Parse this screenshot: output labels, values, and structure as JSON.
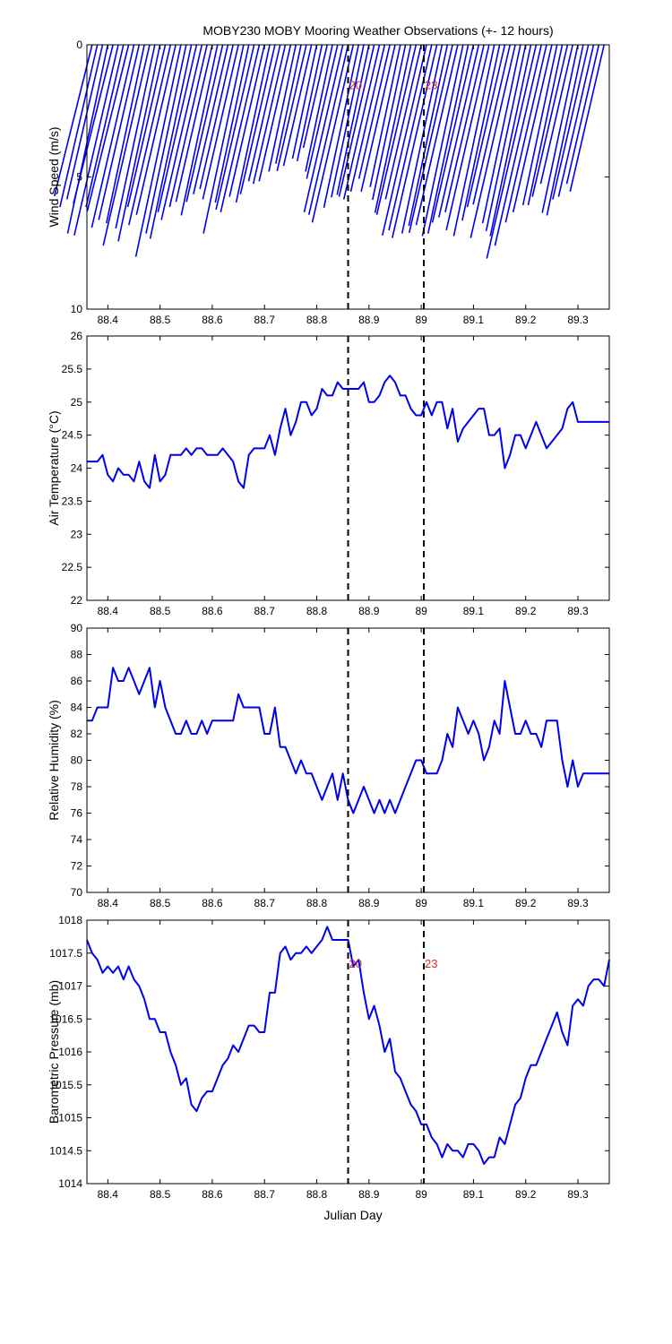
{
  "figure": {
    "title": "MOBY230 MOBY Mooring Weather Observations (+- 12 hours)",
    "xlabel": "Julian Day"
  },
  "colors": {
    "series": "#0000ee",
    "marker": "#d42a2a",
    "axis": "#000000"
  },
  "chart_data": [
    {
      "type": "line",
      "name": "wind",
      "ylabel": "Wind Speed (m/s)",
      "xlim": [
        88.36,
        89.36
      ],
      "ylim": [
        0,
        10
      ],
      "y_reversed": true,
      "xticks": [
        88.4,
        88.5,
        88.6,
        88.7,
        88.8,
        88.9,
        89,
        89.1,
        89.2,
        89.3
      ],
      "yticks": [
        0,
        5,
        10
      ],
      "vlines": [
        88.86,
        89.005
      ],
      "markers": [
        {
          "x": 88.86,
          "label": "20"
        },
        {
          "x": 89.005,
          "label": "23"
        }
      ],
      "marker_y": 1.5,
      "sticks": {
        "x": [
          88.37,
          88.38,
          88.39,
          88.4,
          88.41,
          88.42,
          88.43,
          88.44,
          88.45,
          88.46,
          88.47,
          88.48,
          88.49,
          88.5,
          88.51,
          88.52,
          88.53,
          88.54,
          88.55,
          88.56,
          88.57,
          88.58,
          88.59,
          88.6,
          88.61,
          88.62,
          88.63,
          88.64,
          88.65,
          88.66,
          88.67,
          88.68,
          88.69,
          88.7,
          88.71,
          88.72,
          88.73,
          88.74,
          88.75,
          88.76,
          88.77,
          88.78,
          88.79,
          88.8,
          88.81,
          88.82,
          88.83,
          88.84,
          88.85,
          88.86,
          88.87,
          88.88,
          88.89,
          88.9,
          88.91,
          88.92,
          88.93,
          88.94,
          88.95,
          88.96,
          88.97,
          88.98,
          88.99,
          89.0,
          89.01,
          89.02,
          89.03,
          89.04,
          89.05,
          89.06,
          89.07,
          89.08,
          89.09,
          89.1,
          89.11,
          89.12,
          89.13,
          89.14,
          89.15,
          89.16,
          89.17,
          89.18,
          89.19,
          89.2,
          89.21,
          89.22,
          89.23,
          89.24,
          89.25,
          89.26,
          89.27,
          89.28,
          89.29,
          89.3,
          89.31,
          89.32,
          89.33,
          89.34,
          89.35
        ],
        "speed": [
          5.9,
          6.3,
          6.0,
          7.3,
          6.2,
          7.4,
          6.3,
          6.5,
          7.1,
          6.8,
          6.9,
          7.8,
          7.1,
          7.6,
          6.3,
          7.0,
          6.6,
          8.2,
          7.3,
          7.5,
          6.5,
          6.8,
          6.3,
          6.1,
          6.6,
          6.1,
          5.8,
          5.6,
          6.0,
          7.3,
          6.1,
          6.4,
          6.5,
          5.9,
          6.1,
          5.8,
          5.3,
          5.4,
          5.3,
          4.9,
          4.6,
          4.9,
          4.7,
          4.4,
          4.5,
          4.0,
          4.9,
          5.2,
          6.5,
          6.6,
          6.9,
          6.3,
          5.9,
          5.8,
          5.9,
          6.0,
          5.7,
          5.2,
          5.7,
          5.5,
          6.0,
          6.5,
          6.6,
          6.0,
          7.4,
          7.2,
          7.5,
          7.3,
          7.0,
          7.3,
          7.0,
          7.4,
          7.3,
          6.9,
          6.7,
          6.5,
          7.2,
          7.4,
          6.8,
          6.3,
          6.2,
          7.5,
          6.9,
          7.2,
          7.4,
          8.3,
          7.8,
          6.9,
          6.5,
          6.2,
          6.2,
          5.9,
          5.4,
          6.5,
          6.6,
          6.0,
          5.9,
          5.4,
          5.7
        ],
        "dir_deg": [
          14,
          13,
          13,
          12,
          14,
          13,
          13,
          14,
          13,
          13,
          12,
          13,
          12,
          12,
          13,
          13,
          13,
          12,
          12,
          12,
          13,
          13,
          13,
          13,
          12,
          13,
          13,
          13,
          13,
          12,
          12,
          13,
          13,
          13,
          12,
          13,
          13,
          13,
          13,
          12,
          12,
          13,
          13,
          12,
          12,
          13,
          12,
          13,
          13,
          13,
          13,
          12,
          12,
          12,
          13,
          13,
          13,
          13,
          13,
          12,
          12,
          12,
          13,
          13,
          13,
          13,
          13,
          12,
          12,
          13,
          13,
          12,
          12,
          13,
          13,
          13,
          13,
          12,
          12,
          13,
          13,
          13,
          12,
          12,
          12,
          13,
          13,
          13,
          13,
          12,
          12,
          13,
          13,
          12,
          12,
          13,
          13,
          13,
          13
        ]
      }
    },
    {
      "type": "line",
      "name": "air",
      "ylabel": "Air Temperature (°C)",
      "xlim": [
        88.36,
        89.36
      ],
      "ylim": [
        22,
        26
      ],
      "xticks": [
        88.4,
        88.5,
        88.6,
        88.7,
        88.8,
        88.9,
        89,
        89.1,
        89.2,
        89.3
      ],
      "yticks": [
        22,
        22.5,
        23,
        23.5,
        24,
        24.5,
        25,
        25.5,
        26
      ],
      "vlines": [
        88.86,
        89.005
      ],
      "series": {
        "x": [
          88.36,
          88.37,
          88.38,
          88.39,
          88.4,
          88.41,
          88.42,
          88.43,
          88.44,
          88.45,
          88.46,
          88.47,
          88.48,
          88.49,
          88.5,
          88.51,
          88.52,
          88.53,
          88.54,
          88.55,
          88.56,
          88.57,
          88.58,
          88.59,
          88.6,
          88.61,
          88.62,
          88.63,
          88.64,
          88.65,
          88.66,
          88.67,
          88.68,
          88.69,
          88.7,
          88.71,
          88.72,
          88.73,
          88.74,
          88.75,
          88.76,
          88.77,
          88.78,
          88.79,
          88.8,
          88.81,
          88.82,
          88.83,
          88.84,
          88.85,
          88.86,
          88.87,
          88.88,
          88.89,
          88.9,
          88.91,
          88.92,
          88.93,
          88.94,
          88.95,
          88.96,
          88.97,
          88.98,
          88.99,
          89.0,
          89.01,
          89.02,
          89.03,
          89.04,
          89.05,
          89.06,
          89.07,
          89.08,
          89.09,
          89.1,
          89.11,
          89.12,
          89.13,
          89.14,
          89.15,
          89.16,
          89.17,
          89.18,
          89.19,
          89.2,
          89.21,
          89.22,
          89.23,
          89.24,
          89.25,
          89.26,
          89.27,
          89.28,
          89.29,
          89.3,
          89.31,
          89.32,
          89.33,
          89.34,
          89.35,
          89.36
        ],
        "y": [
          24.1,
          24.1,
          24.1,
          24.2,
          23.9,
          23.8,
          24.0,
          23.9,
          23.9,
          23.8,
          24.1,
          23.8,
          23.7,
          24.2,
          23.8,
          23.9,
          24.2,
          24.2,
          24.2,
          24.3,
          24.2,
          24.3,
          24.3,
          24.2,
          24.2,
          24.2,
          24.3,
          24.2,
          24.1,
          23.8,
          23.7,
          24.2,
          24.3,
          24.3,
          24.3,
          24.5,
          24.2,
          24.6,
          24.9,
          24.5,
          24.7,
          25.0,
          25.0,
          24.8,
          24.9,
          25.2,
          25.1,
          25.1,
          25.3,
          25.2,
          25.2,
          25.2,
          25.2,
          25.3,
          25.0,
          25.0,
          25.1,
          25.3,
          25.4,
          25.3,
          25.1,
          25.1,
          24.9,
          24.8,
          24.8,
          25.0,
          24.8,
          25.0,
          25.0,
          24.6,
          24.9,
          24.4,
          24.6,
          24.7,
          24.8,
          24.9,
          24.9,
          24.5,
          24.5,
          24.6,
          24.0,
          24.2,
          24.5,
          24.5,
          24.3,
          24.5,
          24.7,
          24.5,
          24.3,
          24.4,
          24.5,
          24.6,
          24.9,
          25.0,
          24.7,
          24.7,
          24.7,
          24.7,
          24.7,
          24.7,
          24.7
        ]
      }
    },
    {
      "type": "line",
      "name": "rh",
      "ylabel": "Relative Humidity (%)",
      "xlim": [
        88.36,
        89.36
      ],
      "ylim": [
        70,
        90
      ],
      "xticks": [
        88.4,
        88.5,
        88.6,
        88.7,
        88.8,
        88.9,
        89,
        89.1,
        89.2,
        89.3
      ],
      "yticks": [
        70,
        72,
        74,
        76,
        78,
        80,
        82,
        84,
        86,
        88,
        90
      ],
      "vlines": [
        88.86,
        89.005
      ],
      "series": {
        "x": [
          88.36,
          88.37,
          88.38,
          88.39,
          88.4,
          88.41,
          88.42,
          88.43,
          88.44,
          88.45,
          88.46,
          88.47,
          88.48,
          88.49,
          88.5,
          88.51,
          88.52,
          88.53,
          88.54,
          88.55,
          88.56,
          88.57,
          88.58,
          88.59,
          88.6,
          88.61,
          88.62,
          88.63,
          88.64,
          88.65,
          88.66,
          88.67,
          88.68,
          88.69,
          88.7,
          88.71,
          88.72,
          88.73,
          88.74,
          88.75,
          88.76,
          88.77,
          88.78,
          88.79,
          88.8,
          88.81,
          88.82,
          88.83,
          88.84,
          88.85,
          88.86,
          88.87,
          88.88,
          88.89,
          88.9,
          88.91,
          88.92,
          88.93,
          88.94,
          88.95,
          88.96,
          88.97,
          88.98,
          88.99,
          89.0,
          89.01,
          89.02,
          89.03,
          89.04,
          89.05,
          89.06,
          89.07,
          89.08,
          89.09,
          89.1,
          89.11,
          89.12,
          89.13,
          89.14,
          89.15,
          89.16,
          89.17,
          89.18,
          89.19,
          89.2,
          89.21,
          89.22,
          89.23,
          89.24,
          89.25,
          89.26,
          89.27,
          89.28,
          89.29,
          89.3,
          89.31,
          89.32,
          89.33,
          89.34,
          89.35,
          89.36
        ],
        "y": [
          83,
          83,
          84,
          84,
          84,
          87,
          86,
          86,
          87,
          86,
          85,
          86,
          87,
          84,
          86,
          84,
          83,
          82,
          82,
          83,
          82,
          82,
          83,
          82,
          83,
          83,
          83,
          83,
          83,
          85,
          84,
          84,
          84,
          84,
          82,
          82,
          84,
          81,
          81,
          80,
          79,
          80,
          79,
          79,
          78,
          77,
          78,
          79,
          77,
          79,
          77,
          76,
          77,
          78,
          77,
          76,
          77,
          76,
          77,
          76,
          77,
          78,
          79,
          80,
          80,
          79,
          79,
          79,
          80,
          82,
          81,
          84,
          83,
          82,
          83,
          82,
          80,
          81,
          83,
          82,
          86,
          84,
          82,
          82,
          83,
          82,
          82,
          81,
          83,
          83,
          83,
          80,
          78,
          80,
          78,
          79,
          79,
          79,
          79,
          79,
          79
        ]
      }
    },
    {
      "type": "line",
      "name": "bp",
      "ylabel": "Barometric Pressure (mb)",
      "xlim": [
        88.36,
        89.36
      ],
      "ylim": [
        1014,
        1018
      ],
      "xticks": [
        88.4,
        88.5,
        88.6,
        88.7,
        88.8,
        88.9,
        89,
        89.1,
        89.2,
        89.3
      ],
      "yticks": [
        1014,
        1014.5,
        1015,
        1015.5,
        1016,
        1016.5,
        1017,
        1017.5,
        1018
      ],
      "vlines": [
        88.86,
        89.005
      ],
      "markers": [
        {
          "x": 88.86,
          "label": "20"
        },
        {
          "x": 89.005,
          "label": "23"
        }
      ],
      "marker_y": 1017.35,
      "series": {
        "x": [
          88.36,
          88.37,
          88.38,
          88.39,
          88.4,
          88.41,
          88.42,
          88.43,
          88.44,
          88.45,
          88.46,
          88.47,
          88.48,
          88.49,
          88.5,
          88.51,
          88.52,
          88.53,
          88.54,
          88.55,
          88.56,
          88.57,
          88.58,
          88.59,
          88.6,
          88.61,
          88.62,
          88.63,
          88.64,
          88.65,
          88.66,
          88.67,
          88.68,
          88.69,
          88.7,
          88.71,
          88.72,
          88.73,
          88.74,
          88.75,
          88.76,
          88.77,
          88.78,
          88.79,
          88.8,
          88.81,
          88.82,
          88.83,
          88.84,
          88.85,
          88.86,
          88.87,
          88.88,
          88.89,
          88.9,
          88.91,
          88.92,
          88.93,
          88.94,
          88.95,
          88.96,
          88.97,
          88.98,
          88.99,
          89.0,
          89.01,
          89.02,
          89.03,
          89.04,
          89.05,
          89.06,
          89.07,
          89.08,
          89.09,
          89.1,
          89.11,
          89.12,
          89.13,
          89.14,
          89.15,
          89.16,
          89.17,
          89.18,
          89.19,
          89.2,
          89.21,
          89.22,
          89.23,
          89.24,
          89.25,
          89.26,
          89.27,
          89.28,
          89.29,
          89.3,
          89.31,
          89.32,
          89.33,
          89.34,
          89.35,
          89.36
        ],
        "y": [
          1017.7,
          1017.5,
          1017.4,
          1017.2,
          1017.3,
          1017.2,
          1017.3,
          1017.1,
          1017.3,
          1017.1,
          1017.0,
          1016.8,
          1016.5,
          1016.5,
          1016.3,
          1016.3,
          1016.0,
          1015.8,
          1015.5,
          1015.6,
          1015.2,
          1015.1,
          1015.3,
          1015.4,
          1015.4,
          1015.6,
          1015.8,
          1015.9,
          1016.1,
          1016.0,
          1016.2,
          1016.4,
          1016.4,
          1016.3,
          1016.3,
          1016.9,
          1016.9,
          1017.5,
          1017.6,
          1017.4,
          1017.5,
          1017.5,
          1017.6,
          1017.5,
          1017.6,
          1017.7,
          1017.9,
          1017.7,
          1017.7,
          1017.7,
          1017.7,
          1017.3,
          1017.4,
          1016.9,
          1016.5,
          1016.7,
          1016.4,
          1016.0,
          1016.2,
          1015.7,
          1015.6,
          1015.4,
          1015.2,
          1015.1,
          1014.9,
          1014.9,
          1014.7,
          1014.6,
          1014.4,
          1014.6,
          1014.5,
          1014.5,
          1014.4,
          1014.6,
          1014.6,
          1014.5,
          1014.3,
          1014.4,
          1014.4,
          1014.7,
          1014.6,
          1014.9,
          1015.2,
          1015.3,
          1015.6,
          1015.8,
          1015.8,
          1016.0,
          1016.2,
          1016.4,
          1016.6,
          1016.3,
          1016.1,
          1016.7,
          1016.8,
          1016.7,
          1017.0,
          1017.1,
          1017.1,
          1017.0,
          1017.4
        ]
      }
    }
  ]
}
